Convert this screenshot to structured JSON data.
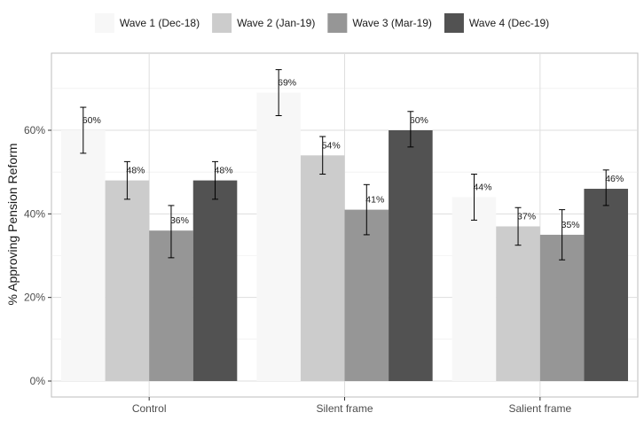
{
  "chart_data": {
    "type": "bar",
    "title": "",
    "xlabel": "",
    "ylabel": "% Approving Pension Reform",
    "categories": [
      "Control",
      "Silent frame",
      "Salient frame"
    ],
    "ylim": [
      0,
      0.75
    ],
    "yticks": [
      0,
      0.2,
      0.4,
      0.6
    ],
    "ytick_labels": [
      "0%",
      "20%",
      "40%",
      "60%"
    ],
    "grid": true,
    "legend_position": "top",
    "series": [
      {
        "name": "Wave 1 (Dec-18)",
        "color": "#f7f7f7",
        "values": [
          0.6,
          0.69,
          0.44
        ],
        "labels": [
          "60%",
          "69%",
          "44%"
        ],
        "err_low": [
          0.545,
          0.635,
          0.385
        ],
        "err_high": [
          0.655,
          0.745,
          0.495
        ]
      },
      {
        "name": "Wave 2 (Jan-19)",
        "color": "#cccccc",
        "values": [
          0.48,
          0.54,
          0.37
        ],
        "labels": [
          "48%",
          "54%",
          "37%"
        ],
        "err_low": [
          0.435,
          0.495,
          0.325
        ],
        "err_high": [
          0.525,
          0.585,
          0.415
        ]
      },
      {
        "name": "Wave 3 (Mar-19)",
        "color": "#969696",
        "values": [
          0.36,
          0.41,
          0.35
        ],
        "labels": [
          "36%",
          "41%",
          "35%"
        ],
        "err_low": [
          0.295,
          0.35,
          0.29
        ],
        "err_high": [
          0.42,
          0.47,
          0.41
        ]
      },
      {
        "name": "Wave 4 (Dec-19)",
        "color": "#525252",
        "values": [
          0.48,
          0.6,
          0.46
        ],
        "labels": [
          "48%",
          "60%",
          "46%"
        ],
        "err_low": [
          0.435,
          0.56,
          0.42
        ],
        "err_high": [
          0.525,
          0.645,
          0.505
        ]
      }
    ]
  }
}
